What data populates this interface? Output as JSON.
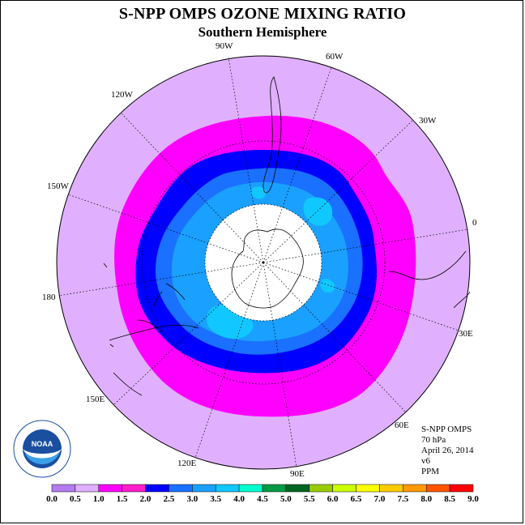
{
  "header": {
    "title": "S-NPP OMPS OZONE MIXING RATIO",
    "subtitle": "Southern Hemisphere"
  },
  "longitude_labels": [
    "90W",
    "60W",
    "30W",
    "0",
    "30E",
    "60E",
    "90E",
    "120E",
    "150E",
    "180",
    "150W",
    "120W"
  ],
  "info": {
    "line1": "S-NPP OMPS",
    "line2": "70 hPa",
    "line3": "April 26, 2014",
    "line4": "v6",
    "line5": "PPM"
  },
  "logo": {
    "name": "NOAA",
    "ring_text": "NATIONAL OCEANIC AND ATMOSPHERIC ADMINISTRATION",
    "lower_text": "U.S. DEPARTMENT OF COMMERCE"
  },
  "colorbar": {
    "ticks": [
      "0.0",
      "0.5",
      "1.0",
      "1.5",
      "2.0",
      "2.5",
      "3.0",
      "3.5",
      "4.0",
      "4.5",
      "5.0",
      "5.5",
      "6.0",
      "6.5",
      "7.0",
      "7.5",
      "8.0",
      "8.5",
      "9.0"
    ],
    "colors": [
      "#b47cf0",
      "#e0b0ff",
      "#ff00ff",
      "#ff1dcc",
      "#0000ff",
      "#1a70ff",
      "#1aa0ff",
      "#10c8ff",
      "#00ffcc",
      "#009944",
      "#006622",
      "#99cc00",
      "#ccff00",
      "#ffff00",
      "#ffcc00",
      "#ff9900",
      "#ff5500",
      "#ff0000",
      "#8b5a2b"
    ]
  },
  "map_colors": {
    "band_0_5_1_0": "#e0b0ff",
    "band_1_0_1_5": "#ff00ff",
    "band_1_5_2_0": "#0000ff",
    "band_2_0_2_5": "#1a70ff",
    "band_2_5_3_0": "#1aa0ff",
    "band_3_0_3_5": "#10c8ff",
    "polar_gap": "#ffffff"
  }
}
